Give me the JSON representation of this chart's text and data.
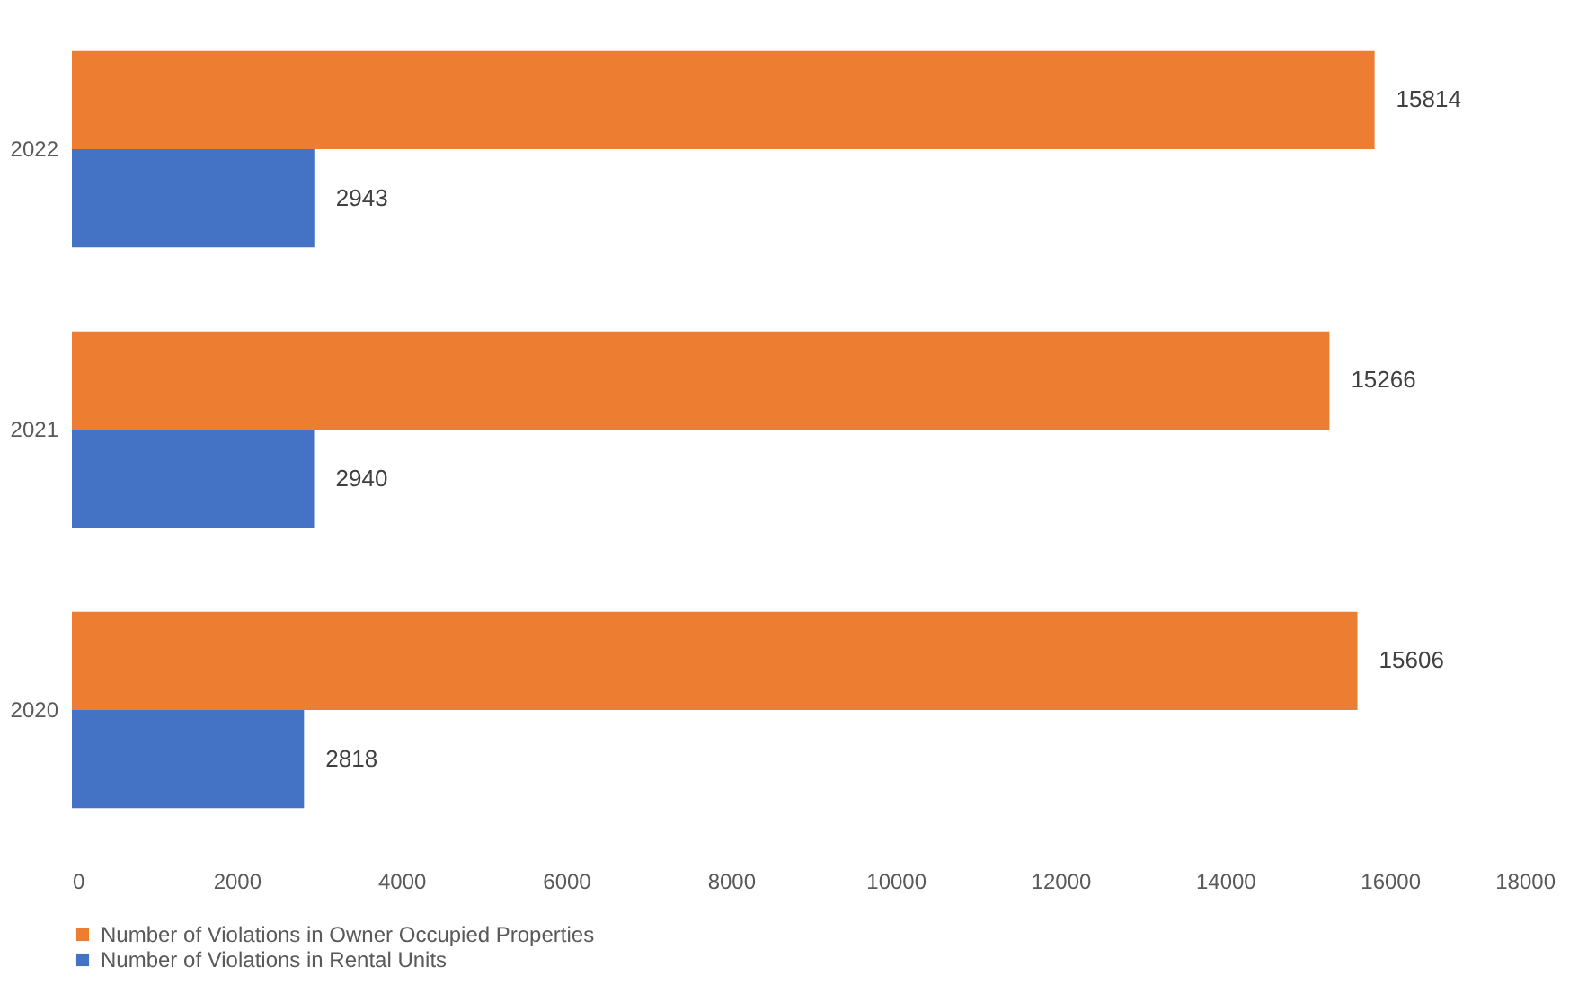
{
  "chart_data": {
    "type": "bar",
    "orientation": "horizontal",
    "categories": [
      "2022",
      "2021",
      "2020"
    ],
    "series": [
      {
        "name": "Number of Violations in Owner Occupied Properties",
        "color": "#ed7d31",
        "values": [
          15814,
          15266,
          15606
        ]
      },
      {
        "name": "Number of Violations in Rental Units",
        "color": "#4472c4",
        "values": [
          2943,
          2940,
          2818
        ]
      }
    ],
    "xlim": [
      0,
      18000
    ],
    "xticks": [
      0,
      2000,
      4000,
      6000,
      8000,
      10000,
      12000,
      14000,
      16000,
      18000
    ],
    "legend": "bottom",
    "data_labels": true,
    "grid": false
  }
}
